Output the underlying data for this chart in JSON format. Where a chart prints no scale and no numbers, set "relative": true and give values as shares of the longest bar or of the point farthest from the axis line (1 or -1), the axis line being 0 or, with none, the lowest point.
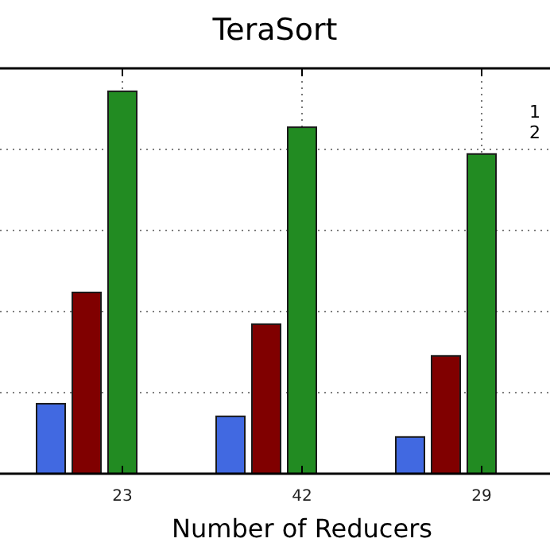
{
  "chart_data": {
    "type": "bar",
    "title": "TeraSort",
    "xlabel": "Number of Reducers",
    "categories": [
      "23",
      "42",
      "29"
    ],
    "relative": true,
    "grid": true,
    "series": [
      {
        "color": "#4169e1",
        "values": [
          0.183,
          0.15,
          0.096
        ]
      },
      {
        "color": "#800000",
        "values": [
          0.474,
          0.391,
          0.308
        ]
      },
      {
        "color": "#228b22",
        "values": [
          1,
          0.906,
          0.836
        ]
      }
    ],
    "annotations": [
      "1",
      "2"
    ]
  }
}
